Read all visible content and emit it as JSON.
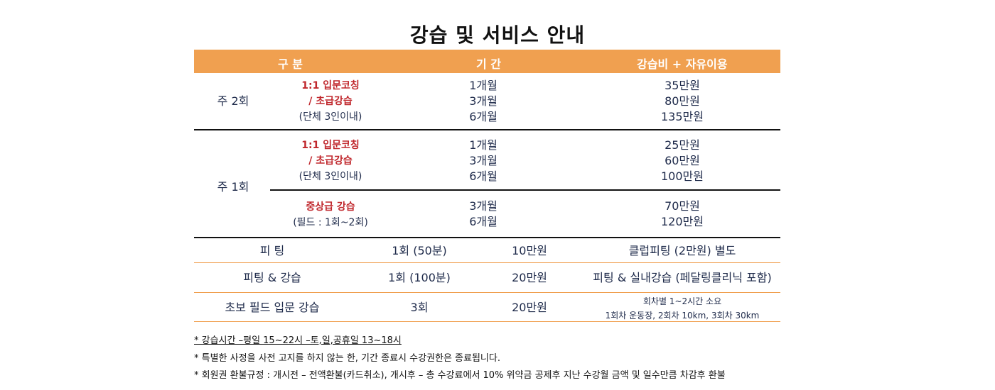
{
  "title": "강습 및 서비스 안내",
  "header": {
    "col1": "구 분",
    "col2": "기 간",
    "col3": "강습비 + 자유이용"
  },
  "row_2": {
    "label": "주 2회",
    "course_line1": "1:1 입문코칭",
    "course_line2": "/ 초급강습",
    "course_line3": "(단체 3인이내)",
    "periods": [
      "1개월",
      "3개월",
      "6개월"
    ],
    "prices": [
      "35만원",
      "80만원",
      "135만원"
    ]
  },
  "row_1": {
    "label": "주 1회",
    "a": {
      "course_line1": "1:1 입문코칭",
      "course_line2": "/ 초급강습",
      "course_line3": "(단체 3인이내)",
      "periods": [
        "1개월",
        "3개월",
        "6개월"
      ],
      "prices": [
        "25만원",
        "60만원",
        "100만원"
      ]
    },
    "b": {
      "course_line1": "중상급 강습",
      "course_line2": "(필드 : 1회~2회)",
      "periods": [
        "3개월",
        "6개월"
      ],
      "prices": [
        "70만원",
        "120만원"
      ]
    }
  },
  "services": [
    {
      "name": "피 팅",
      "count": "1회 (50분)",
      "price": "10만원",
      "note": "클럽피팅 (2만원) 별도"
    },
    {
      "name": "피팅 & 강습",
      "count": "1회 (100분)",
      "price": "20만원",
      "note": "피팅 & 실내강습 (페달링클리닉 포함)"
    },
    {
      "name": "초보 필드 입문 강습",
      "count": "3회",
      "price": "20만원",
      "note_line1": "회차별 1~2시간 소요",
      "note_line2": "1회차 운동장, 2회차 10km, 3회차 30km"
    }
  ],
  "notes": [
    "* 강습시간 –평일 15~22시 –토,일,공휴일 13~18시",
    "* 특별한 사정을 사전 고지를 하지 않는 한, 기간 종료시 수강권한은 종료됩니다.",
    "* 회원권 환불규정 : 개시전 – 전액환불(카드취소), 개시후 – 총 수강료에서 10% 위약금 공제후 지난 수강월 금액 및 일수만큼 차감후 환불"
  ],
  "colors": {
    "header_bg": "#f0a050",
    "accent_red": "#c0282d",
    "text_navy": "#1e2a4a"
  }
}
